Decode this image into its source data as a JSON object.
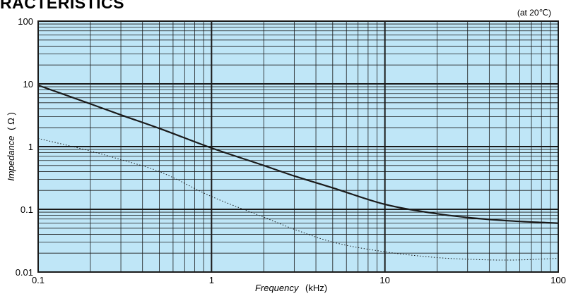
{
  "header": {
    "title": "RACTERISTICS",
    "condition": "(at 20℃)"
  },
  "chart_data": {
    "type": "line",
    "xscale": "log",
    "yscale": "log",
    "xlim": [
      0.1,
      100
    ],
    "ylim": [
      0.01,
      100
    ],
    "grid": true,
    "background_color": "#bfe6f7",
    "x_ticks": [
      "0.1",
      "1",
      "10",
      "100"
    ],
    "y_ticks": [
      "0.01",
      "0.1",
      "1",
      "10",
      "100"
    ],
    "xlabel": {
      "italic": "Frequency",
      "unit": "(kHz)"
    },
    "ylabel": {
      "italic": "Impedance",
      "unit": "( Ω )"
    },
    "series": [
      {
        "style": "solid",
        "color": "#1a1a1a",
        "x": [
          0.1,
          0.2,
          0.3,
          0.5,
          1,
          2,
          3,
          5,
          10,
          20,
          30,
          50,
          100
        ],
        "y": [
          9.5,
          4.8,
          3.2,
          1.95,
          0.95,
          0.5,
          0.34,
          0.22,
          0.12,
          0.085,
          0.074,
          0.066,
          0.06
        ]
      },
      {
        "style": "dotted",
        "color": "#1a1a1a",
        "x": [
          0.1,
          0.2,
          0.3,
          0.5,
          1,
          2,
          3,
          5,
          10,
          20,
          30,
          50,
          100
        ],
        "y": [
          1.35,
          0.85,
          0.62,
          0.4,
          0.16,
          0.075,
          0.048,
          0.03,
          0.021,
          0.017,
          0.016,
          0.0155,
          0.0165
        ]
      }
    ]
  }
}
